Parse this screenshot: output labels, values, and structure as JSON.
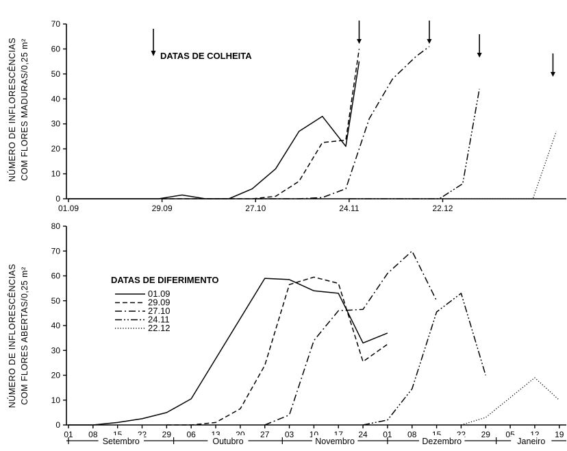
{
  "chart_data": [
    {
      "type": "line",
      "ylabel_line1": "NÚMERO DE INFLORESCÊNCIAS",
      "ylabel_line2": "COM FLORES MADURAS/0,25 m²",
      "ylim": [
        0,
        70
      ],
      "yticks": [
        "0",
        "10",
        "20",
        "30",
        "40",
        "50",
        "60",
        "70"
      ],
      "x_ticklabels": [
        "01.09",
        "29.09",
        "27.10",
        "24.11",
        "22.12"
      ],
      "annotation": "DATAS DE COLHEITA",
      "grid": false,
      "series": [
        {
          "name": "01.09",
          "style": "solid",
          "x": [
            1,
            14,
            22,
            28,
            35,
            42,
            49,
            56,
            63,
            70,
            77,
            84,
            88
          ],
          "y": [
            0,
            0,
            0,
            0,
            1.5,
            0,
            0,
            4,
            12,
            27,
            33,
            21,
            55
          ]
        },
        {
          "name": "29.09",
          "style": "dashed",
          "x": [
            29,
            35,
            42,
            49,
            56,
            63,
            70,
            77,
            84,
            88
          ],
          "y": [
            0,
            0,
            0,
            0,
            0,
            1,
            7,
            22.5,
            23.5,
            60
          ]
        },
        {
          "name": "27.10",
          "style": "dashdot",
          "x": [
            57,
            63,
            70,
            77,
            84,
            91,
            98,
            105,
            109
          ],
          "y": [
            0,
            0,
            0,
            0.5,
            4,
            32,
            48,
            57,
            61
          ]
        },
        {
          "name": "24.11",
          "style": "dashdotdot",
          "x": [
            85,
            112,
            119,
            124
          ],
          "y": [
            0,
            0,
            6,
            44
          ]
        },
        {
          "name": "22.12",
          "style": "dotted",
          "x": [
            113,
            140,
            147
          ],
          "y": [
            0,
            0,
            27
          ]
        }
      ],
      "arrows_x": [
        88,
        109,
        124,
        146
      ]
    },
    {
      "type": "line",
      "ylabel_line1": "NÚMERO DE INFLORESCÊNCIAS",
      "ylabel_line2": "COM FLORES ABERTAS/0,25 m²",
      "ylim": [
        0,
        80
      ],
      "yticks": [
        "0",
        "10",
        "20",
        "30",
        "40",
        "50",
        "60",
        "70",
        "80"
      ],
      "x_ticklabels": [
        "01",
        "08",
        "15",
        "22",
        "29",
        "06",
        "13",
        "20",
        "27",
        "03",
        "10",
        "17",
        "24",
        "01",
        "08",
        "15",
        "22",
        "29",
        "05",
        "12",
        "19"
      ],
      "months": [
        "Setembro",
        "Outubro",
        "Novembro",
        "Dezembro",
        "Janeiro"
      ],
      "legend_title": "DATAS DE DIFERIMENTO",
      "legend_position": "upper-left",
      "grid": false,
      "series": [
        {
          "name": "01.09",
          "style": "solid",
          "x": [
            1,
            8,
            15,
            22,
            29,
            36,
            57,
            64,
            71,
            78,
            85,
            92
          ],
          "y": [
            0,
            0,
            1,
            2.5,
            5,
            10.5,
            59,
            58.5,
            54,
            53,
            33,
            37
          ]
        },
        {
          "name": "29.09",
          "style": "dashed",
          "x": [
            29,
            36,
            43,
            50,
            57,
            64,
            71,
            78,
            85,
            92
          ],
          "y": [
            0,
            0,
            1,
            6.5,
            24,
            56.5,
            59.5,
            57,
            25.5,
            32.5
          ]
        },
        {
          "name": "27.10",
          "style": "dashdot",
          "x": [
            57,
            64,
            71,
            78,
            85,
            92,
            99,
            106
          ],
          "y": [
            0,
            4,
            34,
            46,
            46.5,
            61,
            70,
            50
          ]
        },
        {
          "name": "24.11",
          "style": "dashdotdot",
          "x": [
            85,
            92,
            99,
            106,
            113,
            120
          ],
          "y": [
            0,
            2,
            14.5,
            45.5,
            53,
            20
          ]
        },
        {
          "name": "22.12",
          "style": "dotted",
          "x": [
            113,
            120,
            127,
            134,
            141
          ],
          "y": [
            0,
            3,
            11,
            19,
            10
          ]
        }
      ]
    }
  ]
}
